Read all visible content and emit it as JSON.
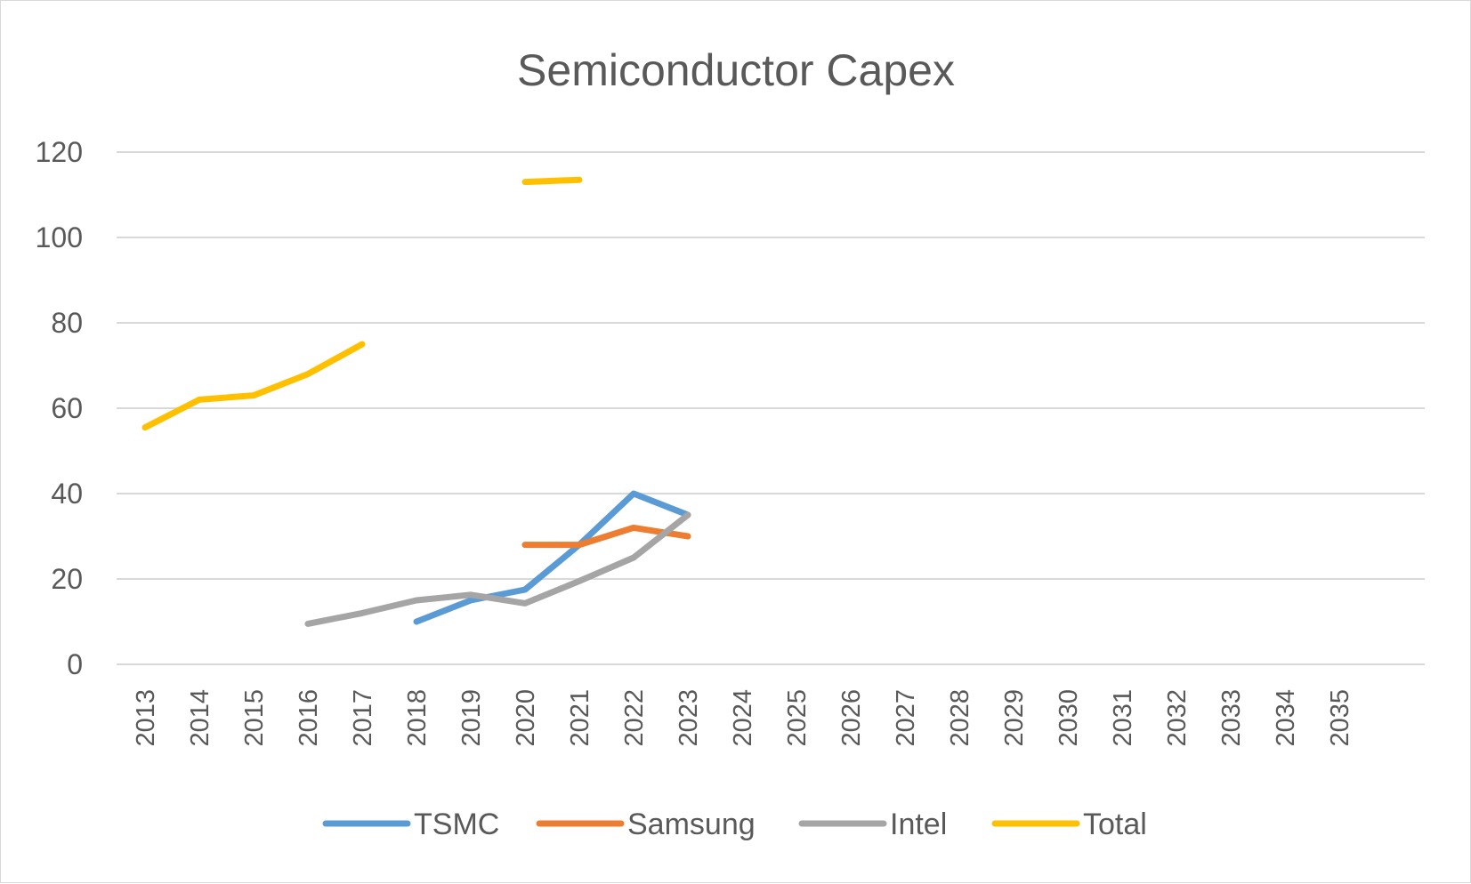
{
  "chart_data": {
    "type": "line",
    "title": "Semiconductor Capex",
    "xlabel": "",
    "ylabel": "",
    "ylim": [
      0,
      120
    ],
    "yticks": [
      0,
      20,
      40,
      60,
      80,
      100,
      120
    ],
    "grid": true,
    "legend_position": "bottom",
    "categories": [
      "2013",
      "2014",
      "2015",
      "2016",
      "2017",
      "2018",
      "2019",
      "2020",
      "2021",
      "2022",
      "2023",
      "2024",
      "2025",
      "2026",
      "2027",
      "2028",
      "2029",
      "2030",
      "2031",
      "2032",
      "2033",
      "2034",
      "2035"
    ],
    "series": [
      {
        "name": "TSMC",
        "color": "#5b9bd5",
        "values": [
          null,
          null,
          null,
          null,
          null,
          10,
          15,
          17.5,
          28,
          40,
          35,
          null,
          null,
          null,
          null,
          null,
          null,
          null,
          null,
          null,
          null,
          null,
          null
        ]
      },
      {
        "name": "Samsung",
        "color": "#ed7d31",
        "values": [
          null,
          null,
          null,
          null,
          null,
          null,
          null,
          28,
          28,
          32,
          30,
          null,
          null,
          null,
          null,
          null,
          null,
          null,
          null,
          null,
          null,
          null,
          null
        ]
      },
      {
        "name": "Intel",
        "color": "#a5a5a5",
        "values": [
          null,
          null,
          null,
          9.5,
          12,
          15,
          16.3,
          14.3,
          19.5,
          25,
          35,
          null,
          null,
          null,
          null,
          null,
          null,
          null,
          null,
          null,
          null,
          null,
          null
        ]
      },
      {
        "name": "Total",
        "color": "#ffc000",
        "values": [
          55.5,
          62,
          63,
          68,
          75,
          null,
          null,
          113,
          113.5,
          null,
          null,
          null,
          null,
          null,
          null,
          null,
          null,
          null,
          null,
          null,
          null,
          null,
          null
        ]
      }
    ]
  }
}
